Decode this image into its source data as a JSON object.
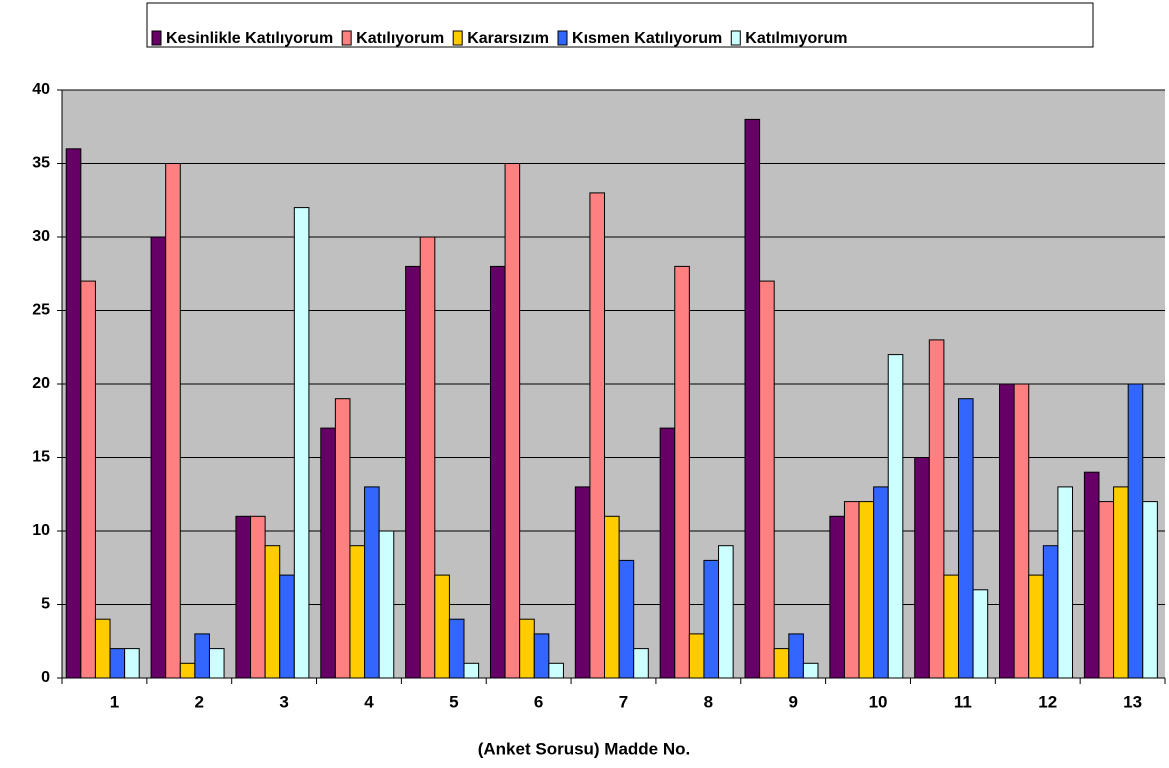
{
  "chart_data": {
    "type": "bar",
    "x_label": "(Anket Sorusu) Madde No.",
    "categories": [
      "1",
      "2",
      "3",
      "4",
      "5",
      "6",
      "7",
      "8",
      "9",
      "10",
      "11",
      "12",
      "13"
    ],
    "series": [
      {
        "name": "Kesinlikle Katılıyorum",
        "color": "#660066",
        "values": [
          36,
          30,
          11,
          17,
          28,
          28,
          13,
          17,
          38,
          11,
          15,
          20,
          14
        ]
      },
      {
        "name": "Katılıyorum",
        "color": "#ff8080",
        "values": [
          27,
          35,
          11,
          19,
          30,
          35,
          33,
          28,
          27,
          12,
          23,
          20,
          12
        ]
      },
      {
        "name": "Kararsızım",
        "color": "#ffcc00",
        "values": [
          4,
          1,
          9,
          9,
          7,
          4,
          11,
          3,
          2,
          12,
          7,
          7,
          13
        ]
      },
      {
        "name": "Kısmen Katılıyorum",
        "color": "#3366ff",
        "values": [
          2,
          3,
          7,
          13,
          4,
          3,
          8,
          8,
          3,
          13,
          19,
          9,
          20
        ]
      },
      {
        "name": "Katılmıyorum",
        "color": "#ccffff",
        "values": [
          2,
          2,
          32,
          10,
          1,
          1,
          2,
          9,
          1,
          22,
          6,
          13,
          12
        ]
      }
    ],
    "ylim": [
      0,
      40
    ],
    "yticks": [
      0,
      5,
      10,
      15,
      20,
      25,
      30,
      35,
      40
    ],
    "grid": true,
    "legend": "top"
  }
}
